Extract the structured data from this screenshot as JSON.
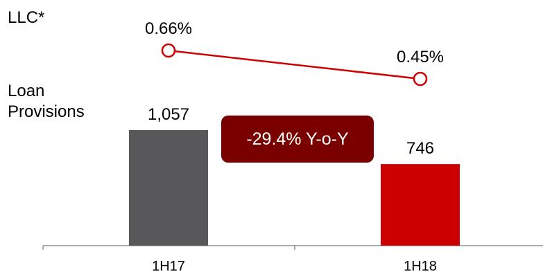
{
  "chart_data": [
    {
      "type": "line",
      "series_label": "LLC*",
      "categories": [
        "1H17",
        "1H18"
      ],
      "values": [
        0.66,
        0.45
      ],
      "value_labels": [
        "0.66%",
        "0.45%"
      ],
      "unit": "%",
      "color": "#d00000"
    },
    {
      "type": "bar",
      "series_label": "Loan Provisions",
      "categories": [
        "1H17",
        "1H18"
      ],
      "values": [
        1057,
        746
      ],
      "value_labels": [
        "1,057",
        "746"
      ],
      "colors": [
        "#58585a",
        "#cc0000"
      ],
      "annotation": "-29.4% Y-o-Y",
      "annotation_color": "#7a0000"
    }
  ],
  "labels": {
    "llc": "LLC*",
    "provisions": "Loan Provisions",
    "yoy": "-29.4% Y-o-Y"
  }
}
